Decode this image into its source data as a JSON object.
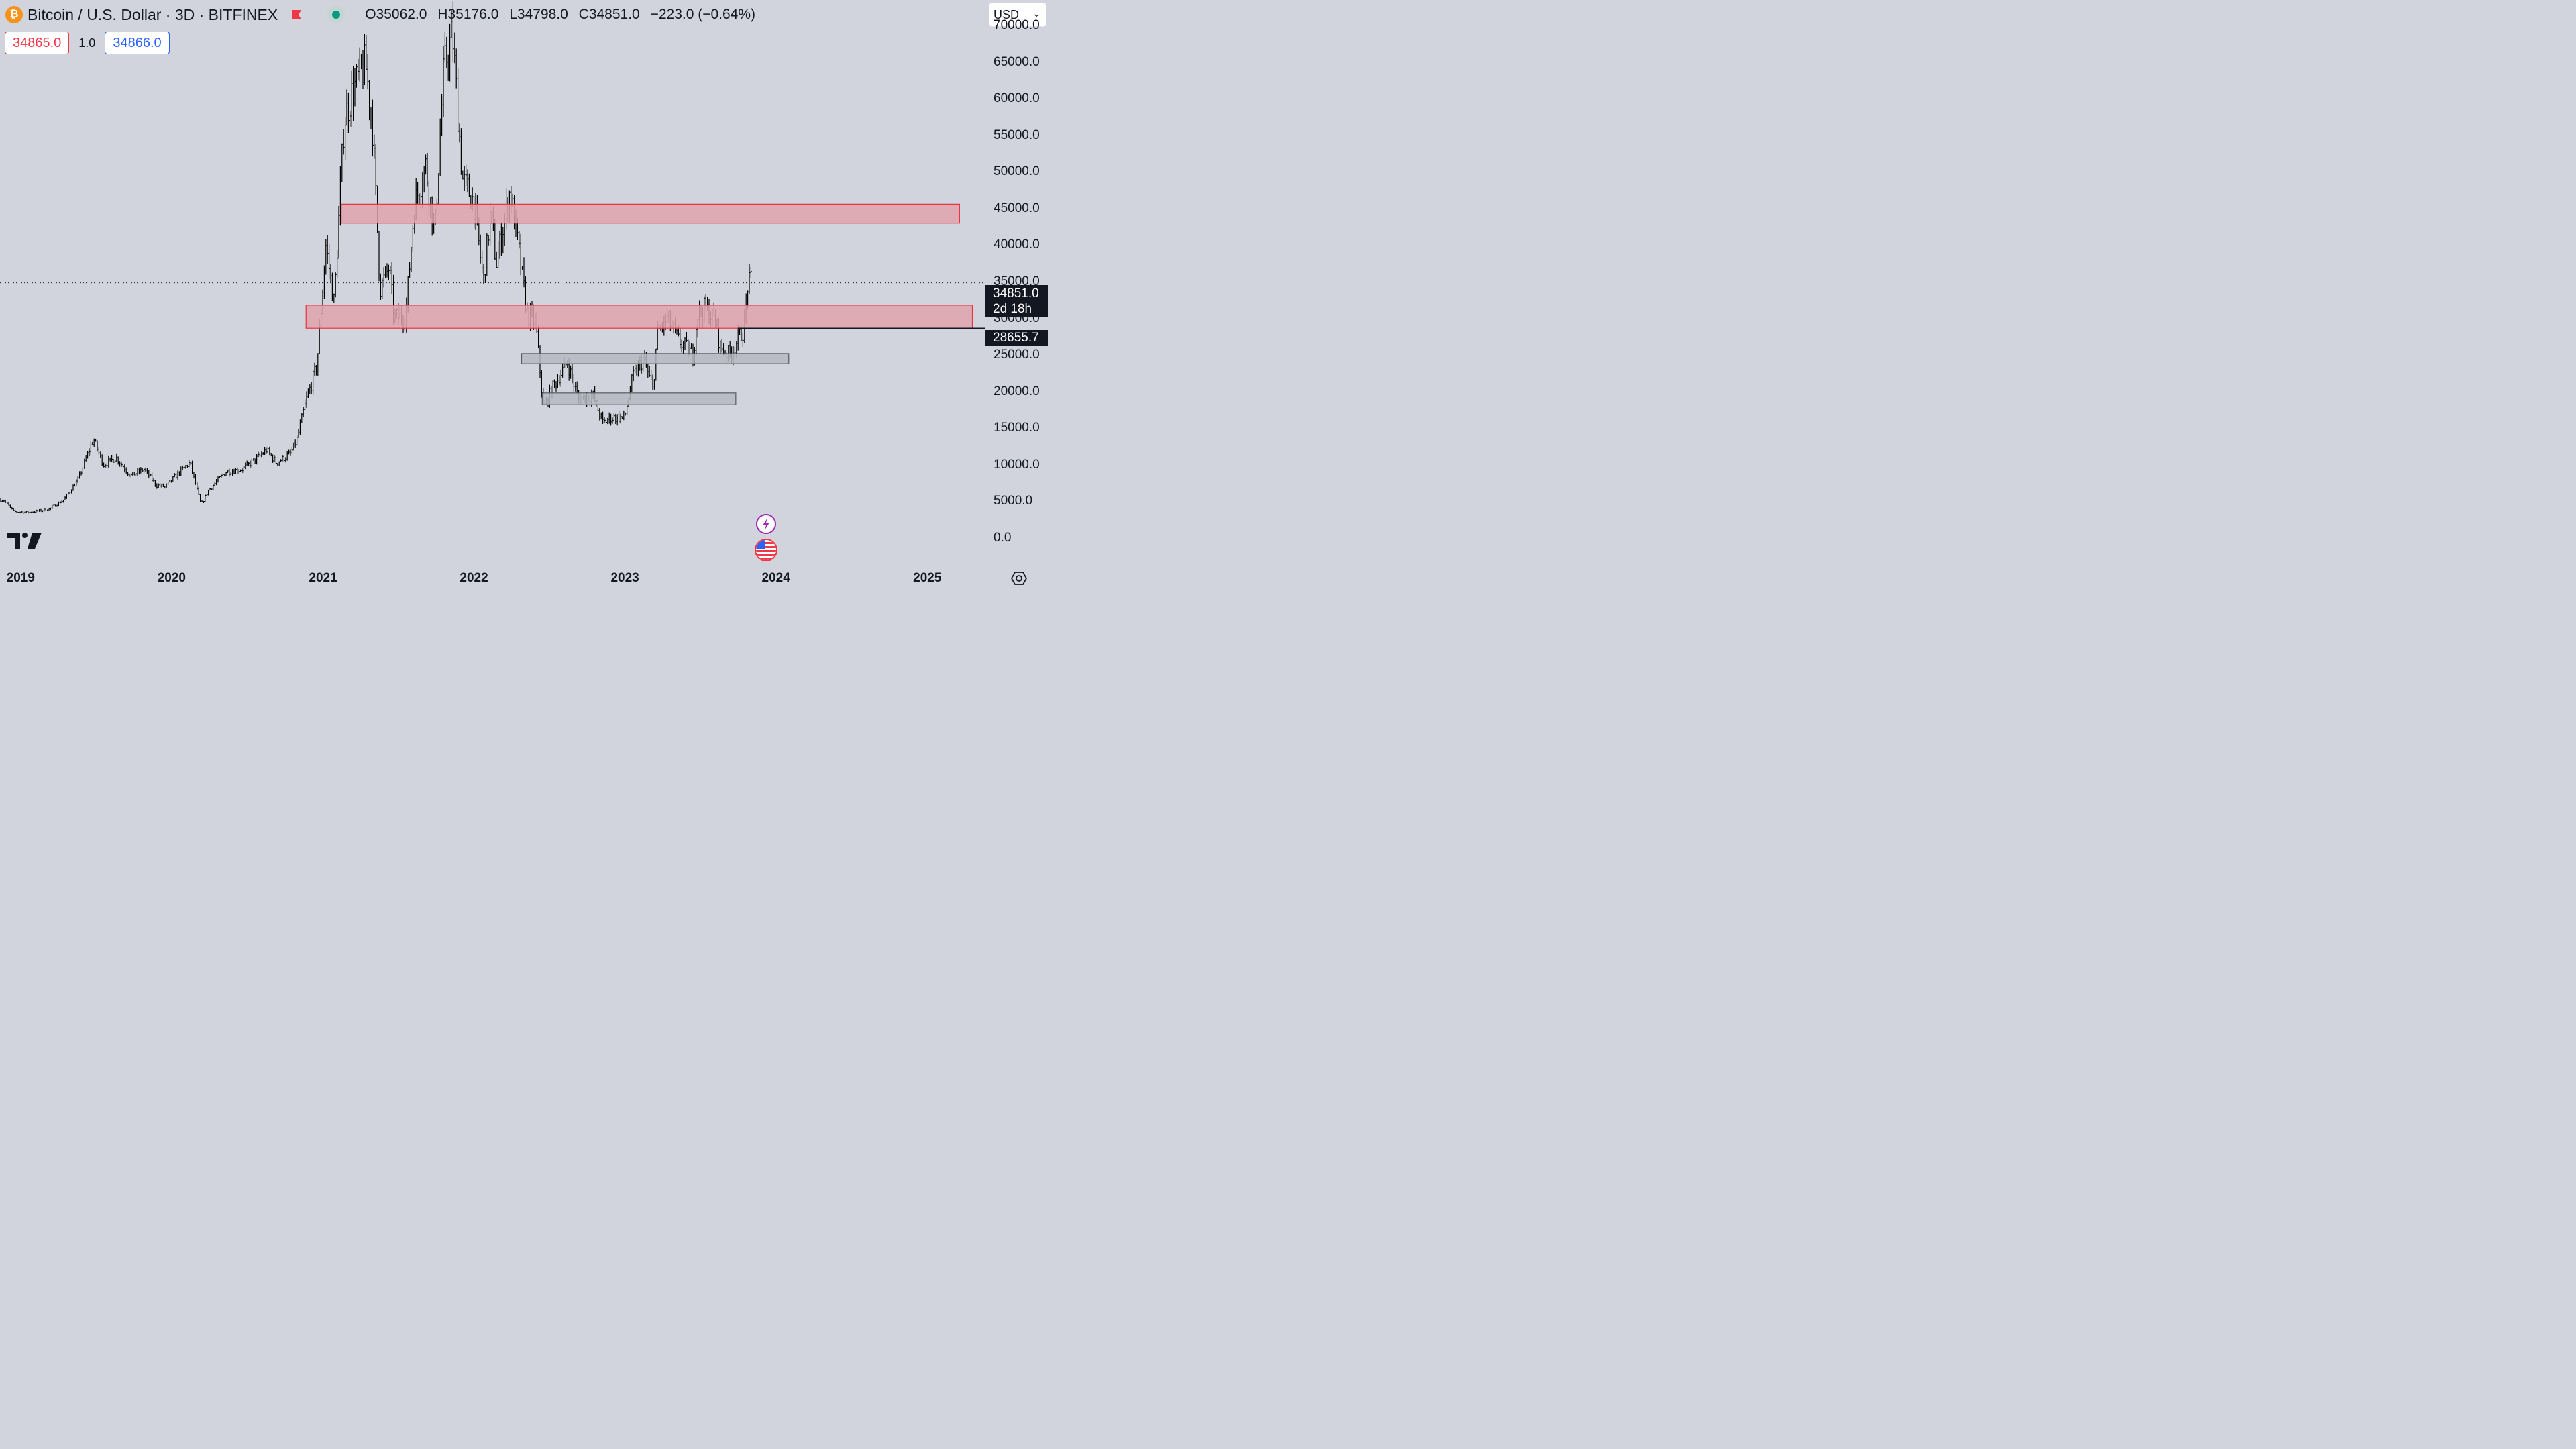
{
  "header": {
    "symbol_title": "Bitcoin / U.S. Dollar · 3D · BITFINEX",
    "coin_icon": "bitcoin-icon",
    "ohlc": {
      "open": "O35062.0",
      "high": "H35176.0",
      "low": "L34798.0",
      "close": "C34851.0",
      "change": "−223.0 (−0.64%)"
    },
    "change_color": "#131722"
  },
  "trading": {
    "sell_price": "34865.0",
    "quantity": "1.0",
    "buy_price": "34866.0",
    "sell_color": "#f23645",
    "buy_color": "#2962ff"
  },
  "currency_selector": "USD",
  "price_labels": {
    "last_price": "34851.0",
    "countdown": "2d 18h",
    "horizontal_line": "28655.7"
  },
  "colors": {
    "background": "#d1d4dc",
    "resistance_zone": "#e0a3ad",
    "resistance_border": "#e8323f",
    "support_zone": "#b6b9c1",
    "support_border": "#565a66",
    "candles": "#000000"
  },
  "chart_data": {
    "type": "line",
    "style": "OHLC bars, 3-day interval",
    "y_axis": {
      "ticks": [
        "70000.0",
        "65000.0",
        "60000.0",
        "55000.0",
        "50000.0",
        "45000.0",
        "40000.0",
        "35000.0",
        "30000.0",
        "25000.0",
        "20000.0",
        "15000.0",
        "10000.0",
        "5000.0",
        "0.0"
      ],
      "range": [
        -3500,
        73500
      ]
    },
    "x_axis": {
      "ticks": [
        "2019",
        "2020",
        "2021",
        "2022",
        "2023",
        "2024",
        "2025"
      ],
      "range": [
        "2018-11-12",
        "2025-05-20"
      ]
    },
    "series": [
      {
        "x": [
          "2018-11-20",
          "2018-12-15",
          "2019-01-20",
          "2019-03-10",
          "2019-04-15",
          "2019-05-20",
          "2019-06-26",
          "2019-07-20",
          "2019-08-20",
          "2019-09-24",
          "2019-10-26",
          "2019-11-25",
          "2019-12-17",
          "2020-01-20",
          "2020-02-14",
          "2020-03-12",
          "2020-03-30",
          "2020-05-10",
          "2020-06-20",
          "2020-07-28",
          "2020-08-17",
          "2020-09-10",
          "2020-10-15",
          "2020-10-30",
          "2020-11-20",
          "2020-12-17",
          "2021-01-08",
          "2021-01-28",
          "2021-02-21",
          "2021-03-13",
          "2021-04-14",
          "2021-05-01",
          "2021-05-19",
          "2021-06-10",
          "2021-06-22",
          "2021-07-20",
          "2021-08-10",
          "2021-09-06",
          "2021-09-28",
          "2021-10-20",
          "2021-11-10",
          "2021-12-04",
          "2021-12-31",
          "2022-01-24",
          "2022-02-10",
          "2022-02-24",
          "2022-03-29",
          "2022-04-20",
          "2022-05-10",
          "2022-05-30",
          "2022-06-18",
          "2022-07-10",
          "2022-08-15",
          "2022-09-10",
          "2022-10-15",
          "2022-11-09",
          "2022-11-25",
          "2022-12-31",
          "2023-01-20",
          "2023-02-15",
          "2023-03-10",
          "2023-03-20",
          "2023-04-14",
          "2023-05-10",
          "2023-06-15",
          "2023-06-25",
          "2023-07-14",
          "2023-08-10",
          "2023-08-18",
          "2023-09-11",
          "2023-10-05",
          "2023-10-16",
          "2023-10-24",
          "2023-11-03"
        ],
        "y": [
          5200,
          3600,
          3500,
          3900,
          5200,
          8000,
          13500,
          10000,
          11000,
          8500,
          9400,
          7200,
          7000,
          9000,
          10300,
          4500,
          6500,
          9000,
          9400,
          11000,
          12000,
          10300,
          11500,
          13500,
          18500,
          23500,
          40000,
          32000,
          57000,
          61000,
          64800,
          56000,
          34000,
          37000,
          30000,
          30500,
          45500,
          51000,
          41500,
          64000,
          69000,
          49000,
          46000,
          35000,
          44500,
          37500,
          47500,
          39000,
          30500,
          29500,
          17600,
          20500,
          24000,
          19000,
          19500,
          15700,
          16400,
          16500,
          22000,
          24500,
          20200,
          28000,
          30000,
          27000,
          25000,
          30500,
          31500,
          29500,
          26200,
          25000,
          27500,
          28500,
          34500,
          35000
        ]
      }
    ],
    "zones": [
      {
        "kind": "resistance",
        "from": "2021-02-14",
        "to": "2025-03-20",
        "low": 43000,
        "high": 45600
      },
      {
        "kind": "resistance",
        "from": "2020-11-21",
        "to": "2025-04-20",
        "low": 28655.7,
        "high": 31800
      },
      {
        "kind": "support",
        "from": "2022-04-26",
        "to": "2024-02-01",
        "low": 23800,
        "high": 25200
      },
      {
        "kind": "support",
        "from": "2022-06-15",
        "to": "2023-09-26",
        "low": 18200,
        "high": 19800
      }
    ],
    "lines": [
      {
        "kind": "last-price-dotted",
        "value": 34851.0
      },
      {
        "kind": "horizontal-line",
        "value": 28655.7,
        "from": "2023-10-01"
      }
    ],
    "grid": false,
    "legend": "top-left"
  },
  "footer": {
    "settings_icon": "gear-icon",
    "logo": "tradingview-logo",
    "event_icons": [
      "lightning-icon",
      "us-flag-icon"
    ]
  }
}
